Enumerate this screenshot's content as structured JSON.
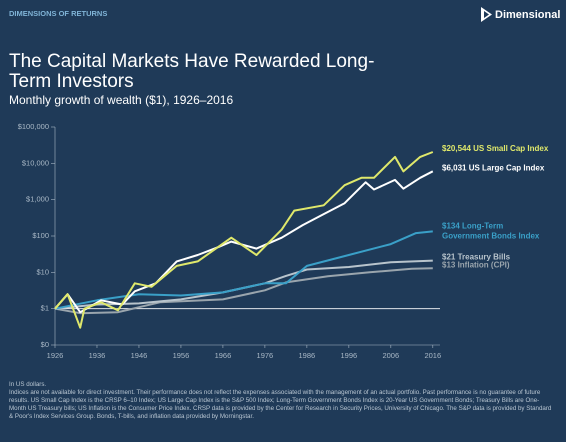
{
  "header": {
    "section": "DIMENSIONS OF RETURNS",
    "brand": "Dimensional"
  },
  "chart_data": {
    "type": "line",
    "title": "The Capital Markets Have Rewarded Long-Term Investors",
    "subtitle": "Monthly growth of wealth ($1), 1926–2016",
    "log_scale": true,
    "xlim": [
      1926,
      2017
    ],
    "xticks": [
      1926,
      1936,
      1946,
      1956,
      1966,
      1976,
      1986,
      1996,
      2006,
      2016
    ],
    "ylim": [
      0.1,
      100000
    ],
    "yticks": [
      {
        "value": 100000,
        "label": "$100,000"
      },
      {
        "value": 10000,
        "label": "$10,000"
      },
      {
        "value": 1000,
        "label": "$1,000"
      },
      {
        "value": 100,
        "label": "$100"
      },
      {
        "value": 10,
        "label": "$10"
      },
      {
        "value": 1,
        "label": "$1"
      },
      {
        "value": 0.1,
        "label": "$0"
      }
    ],
    "series": [
      {
        "label_lines": [
          "$20,544 US Small Cap Index"
        ],
        "color": "#dfe86b",
        "x": [
          1926,
          1929,
          1932,
          1933,
          1937,
          1941,
          1945,
          1949,
          1955,
          1960,
          1968,
          1974,
          1980,
          1983,
          1990,
          1995,
          1999,
          2002,
          2007,
          2009,
          2013,
          2016
        ],
        "values": [
          1,
          2.5,
          0.3,
          1,
          1.5,
          0.9,
          5,
          4,
          15,
          20,
          90,
          30,
          150,
          500,
          700,
          2500,
          4000,
          4000,
          15000,
          6000,
          15000,
          20544
        ]
      },
      {
        "label_lines": [
          "$6,031 US Large Cap Index"
        ],
        "color": "#ffffff",
        "x": [
          1926,
          1929,
          1932,
          1937,
          1942,
          1945,
          1950,
          1955,
          1960,
          1965,
          1968,
          1974,
          1980,
          1985,
          1990,
          1995,
          2000,
          2002,
          2007,
          2009,
          2013,
          2016
        ],
        "values": [
          1,
          2.5,
          0.8,
          1.7,
          1.3,
          3,
          5,
          20,
          30,
          50,
          70,
          45,
          90,
          200,
          400,
          800,
          3000,
          1900,
          3500,
          2000,
          4000,
          6031
        ]
      },
      {
        "label_lines": [
          "$134 Long-Term",
          "Government Bonds Index"
        ],
        "color": "#3aa0c8",
        "x": [
          1926,
          1936,
          1946,
          1956,
          1966,
          1976,
          1981,
          1986,
          1996,
          2006,
          2012,
          2016
        ],
        "values": [
          1,
          1.7,
          2.5,
          2.3,
          2.8,
          5,
          5,
          15,
          30,
          60,
          120,
          134
        ]
      },
      {
        "label_lines": [
          "$21 Treasury Bills"
        ],
        "color": "#b8c4cc",
        "x": [
          1926,
          1936,
          1946,
          1956,
          1966,
          1976,
          1981,
          1986,
          1996,
          2006,
          2016
        ],
        "values": [
          1,
          1.3,
          1.4,
          1.8,
          2.8,
          5,
          8,
          12,
          14,
          19,
          21
        ]
      },
      {
        "label_lines": [
          "$13 Inflation (CPI)"
        ],
        "color": "#9aa5ad",
        "x": [
          1926,
          1932,
          1941,
          1946,
          1951,
          1966,
          1976,
          1981,
          1991,
          2001,
          2011,
          2016
        ],
        "values": [
          1,
          0.75,
          0.8,
          1.1,
          1.5,
          1.8,
          3.2,
          5.3,
          7.8,
          10,
          12.5,
          13
        ]
      }
    ]
  },
  "footnotes": [
    "In US dollars.",
    "Indices are not available for direct investment. Their performance does not reflect the expenses associated with the management of an actual portfolio. Past performance is no guarantee of future results. US Small Cap Index is the CRSP 6–10 Index; US Large Cap Index is the S&P 500 Index; Long-Term Government Bonds Index is 20-Year US Government Bonds; Treasury Bills are One-Month US Treasury bills; US Inflation is the Consumer Price Index. CRSP data is provided by the Center for Research in Security Prices, University of Chicago. The S&P data is provided by Standard & Poor's Index Services Group. Bonds, T-bills, and inflation data provided by Morningstar."
  ]
}
